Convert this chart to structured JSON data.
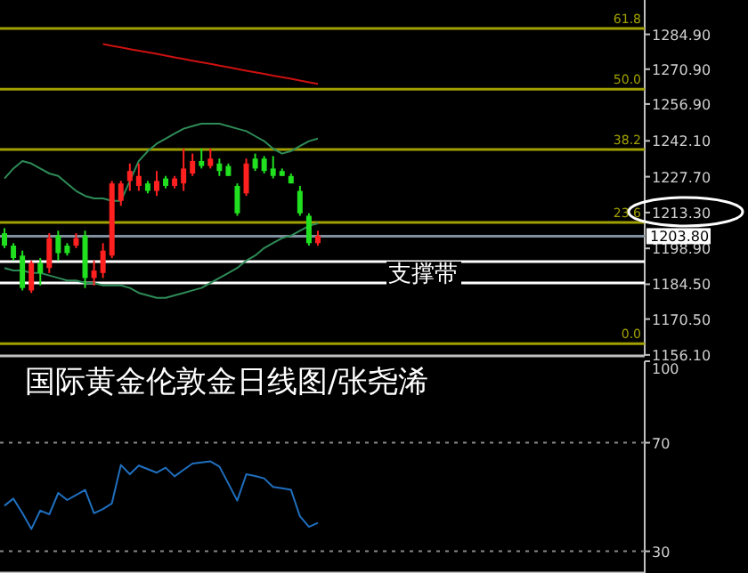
{
  "chart_data": [
    {
      "type": "candlestick",
      "tick_labels": "y",
      "grid": false,
      "categories": [
        null,
        null,
        null,
        null,
        null,
        null,
        null,
        null,
        null,
        null,
        null,
        null,
        null,
        null,
        null,
        null,
        null,
        null,
        null,
        null,
        null,
        null,
        null,
        null,
        null,
        null,
        null,
        null,
        null,
        null,
        null,
        null,
        null,
        null,
        null,
        null,
        null,
        null,
        null,
        null,
        null,
        null,
        null,
        null,
        null,
        null,
        null,
        null,
        null,
        null,
        null,
        null,
        null,
        null,
        null,
        null,
        null,
        null,
        null,
        null,
        null,
        null,
        null,
        null,
        null,
        null,
        null,
        null,
        null,
        null,
        null,
        null
      ],
      "ohlc": [
        [
          1205,
          1207,
          1199,
          1200
        ],
        [
          1200,
          1201,
          1194,
          1195
        ],
        [
          1196,
          1198,
          1182,
          1183
        ],
        [
          1182,
          1194,
          1181,
          1193
        ],
        [
          1193,
          1195,
          1184,
          1189
        ],
        [
          1191,
          1205,
          1189,
          1203
        ],
        [
          1204,
          1206,
          1194,
          1197
        ],
        [
          1200,
          1201,
          1196,
          1197
        ],
        [
          1200,
          1205,
          1199,
          1203
        ],
        [
          1204,
          1206,
          1183,
          1187
        ],
        [
          1187,
          1194,
          1184,
          1190
        ],
        [
          1189,
          1201,
          1187,
          1198
        ],
        [
          1196,
          1226,
          1195,
          1225
        ],
        [
          1218,
          1226,
          1216,
          1225
        ],
        [
          1226,
          1233,
          1222,
          1230
        ],
        [
          1224,
          1233,
          1222,
          1228
        ],
        [
          1225,
          1226,
          1221,
          1222
        ],
        [
          1222,
          1230,
          1220,
          1226
        ],
        [
          1227,
          1228,
          1223,
          1224
        ],
        [
          1224,
          1228,
          1223,
          1227
        ],
        [
          1225,
          1239,
          1222,
          1231
        ],
        [
          1229,
          1237,
          1228,
          1234
        ],
        [
          1234,
          1239,
          1231,
          1232
        ],
        [
          1232,
          1239,
          1231,
          1235
        ],
        [
          1233,
          1235,
          1228,
          1230
        ],
        [
          1232,
          1233,
          1228,
          1228
        ],
        [
          1224,
          1225,
          1212,
          1213
        ],
        [
          1221,
          1235,
          1220,
          1233
        ],
        [
          1235,
          1237,
          1230,
          1231
        ],
        [
          1235,
          1236,
          1229,
          1230
        ],
        [
          1231,
          1236,
          1227,
          1228
        ],
        [
          1230,
          1231,
          1228,
          1228
        ],
        [
          1228,
          1229,
          1225,
          1225
        ],
        [
          1222,
          1224,
          1212,
          1213
        ],
        [
          1212,
          1213,
          1200,
          1201
        ],
        [
          1201,
          1206,
          1200,
          1204
        ],
        null,
        null,
        null,
        null,
        null,
        null,
        null,
        null,
        null,
        null,
        null,
        null,
        null,
        null,
        null,
        null,
        null,
        null,
        null,
        null,
        null,
        null,
        null,
        null,
        null,
        null,
        null,
        null,
        null,
        null,
        null,
        null,
        null,
        null,
        null,
        null
      ],
      "series": [
        {
          "type": "line",
          "color": "#cc1111",
          "values": [
            null,
            null,
            null,
            null,
            null,
            null,
            null,
            null,
            null,
            null,
            null,
            1281,
            1280.3,
            1279.7,
            1279,
            1278.3,
            1277.7,
            1277,
            1276.3,
            1275.7,
            1275,
            1274.3,
            1273.7,
            1273,
            1272.3,
            1271.7,
            1271,
            1270.3,
            1269.7,
            1269,
            1268.3,
            1267.7,
            1267,
            1266.3,
            1265.7,
            1265,
            null,
            null,
            null,
            null,
            null,
            null,
            null,
            null,
            null,
            null,
            null,
            null,
            null,
            null,
            null,
            null,
            null,
            null,
            null,
            null,
            null,
            null,
            null,
            null,
            null,
            null,
            null,
            null,
            null,
            null,
            null,
            null,
            null,
            null,
            null,
            null
          ]
        },
        {
          "type": "line",
          "color": "#2e8b57",
          "values": [
            1227,
            1231,
            1234,
            1233,
            1231,
            1229,
            1228,
            1225,
            1222,
            1220,
            1219,
            1219,
            1218,
            1218,
            1226,
            1234,
            1238,
            1241,
            1243,
            1245,
            1247,
            1248,
            1249,
            1249,
            1249,
            1248,
            1247,
            1246,
            1244,
            1242,
            1239,
            1237,
            1238,
            1240,
            1242,
            1243,
            null,
            null,
            null,
            null,
            null,
            null,
            null,
            null,
            null,
            null,
            null,
            null,
            null,
            null,
            null,
            null,
            null,
            null,
            null,
            null,
            null,
            null,
            null,
            null,
            null,
            null,
            null,
            null,
            null,
            null,
            null,
            null,
            null,
            null,
            null,
            null
          ]
        },
        {
          "type": "line",
          "color": "#2e8b57",
          "values": [
            1191,
            1190,
            1190,
            1189,
            1189,
            1188,
            1187,
            1186,
            1186,
            1185,
            1185,
            1184,
            1184,
            1184,
            1183,
            1181,
            1180,
            1179,
            1179,
            1180,
            1181,
            1182,
            1183,
            1185,
            1187,
            1189,
            1191,
            1194,
            1196,
            1199,
            1201,
            1203,
            1204,
            1206,
            1208,
            1209,
            null,
            null,
            null,
            null,
            null,
            null,
            null,
            null,
            null,
            null,
            null,
            null,
            null,
            null,
            null,
            null,
            null,
            null,
            null,
            null,
            null,
            null,
            null,
            null,
            null,
            null,
            null,
            null,
            null,
            null,
            null,
            null,
            null,
            null,
            null,
            null
          ]
        }
      ],
      "ylim": [
        1155.7,
        1298.7
      ],
      "yticks": [
        {
          "value": 1284.9,
          "label": "1284.90"
        },
        {
          "value": 1270.9,
          "label": "1270.90"
        },
        {
          "value": 1256.9,
          "label": "1256.90"
        },
        {
          "value": 1242.1,
          "label": "1242.10"
        },
        {
          "value": 1227.7,
          "label": "1227.70"
        },
        {
          "value": 1213.3,
          "label": "1213.30"
        },
        {
          "value": 1198.9,
          "label": "1198.90"
        },
        {
          "value": 1184.5,
          "label": "1184.50"
        },
        {
          "value": 1170.5,
          "label": "1170.50"
        },
        {
          "value": 1156.1,
          "label": "1156.10"
        }
      ],
      "ref_lines": [
        {
          "axis": "y",
          "value": 1287.3,
          "color": "#a0a000"
        },
        {
          "axis": "y",
          "value": 1262.9,
          "color": "#a0a000"
        },
        {
          "axis": "y",
          "value": 1238.6,
          "color": "#a0a000"
        },
        {
          "axis": "y",
          "value": 1209.3,
          "color": "#a0a000"
        },
        {
          "axis": "y",
          "value": 1160.6,
          "color": "#a0a000"
        },
        {
          "axis": "y",
          "value": 1203.8,
          "label": "1203.80",
          "color": "#8090a0"
        },
        {
          "axis": "y",
          "value": 1193.6,
          "color": "#ffffff"
        },
        {
          "axis": "y",
          "value": 1185.0,
          "color": "#ffffff"
        }
      ],
      "annotations": [
        {
          "text": "61.8",
          "y": 1287.3
        },
        {
          "text": "50.0",
          "y": 1262.9
        },
        {
          "text": "38.2",
          "y": 1238.6
        },
        {
          "text": "23.6",
          "y": 1209.3
        },
        {
          "text": "0.0",
          "y": 1160.6
        },
        {
          "text": "支撑带",
          "y": 1189.3
        },
        "国际黄金伦敦金日线图/张尧浠"
      ]
    },
    {
      "type": "line",
      "tick_labels": "y",
      "grid": "y",
      "categories": [
        null,
        null,
        null,
        null,
        null,
        null,
        null,
        null,
        null,
        null,
        null,
        null,
        null,
        null,
        null,
        null,
        null,
        null,
        null,
        null,
        null,
        null,
        null,
        null,
        null,
        null,
        null,
        null,
        null,
        null,
        null,
        null,
        null,
        null,
        null,
        null,
        null,
        null,
        null,
        null,
        null,
        null,
        null,
        null,
        null,
        null,
        null,
        null,
        null,
        null,
        null,
        null,
        null,
        null,
        null,
        null,
        null,
        null,
        null,
        null,
        null,
        null,
        null,
        null,
        null,
        null,
        null,
        null,
        null,
        null,
        null,
        null
      ],
      "series": [
        {
          "color": "#1f6fbf",
          "values": [
            46.8,
            49.4,
            44,
            38.2,
            45,
            43.6,
            51.5,
            48.9,
            50.7,
            52.6,
            44,
            45.5,
            47.6,
            61.8,
            58.4,
            61.6,
            60.3,
            59,
            60.8,
            57.6,
            60,
            62.3,
            62.7,
            63.1,
            61.2,
            55,
            48.7,
            58.4,
            57.7,
            56.9,
            53.7,
            53.2,
            52.6,
            42.9,
            39,
            40.5,
            null,
            null,
            null,
            null,
            null,
            null,
            null,
            null,
            null,
            null,
            null,
            null,
            null,
            null,
            null,
            null,
            null,
            null,
            null,
            null,
            null,
            null,
            null,
            null,
            null,
            null,
            null,
            null,
            null,
            null,
            null,
            null,
            null,
            null,
            null,
            null
          ]
        }
      ],
      "ylim": [
        22,
        100
      ],
      "yticks": [
        30,
        70,
        100
      ]
    }
  ]
}
